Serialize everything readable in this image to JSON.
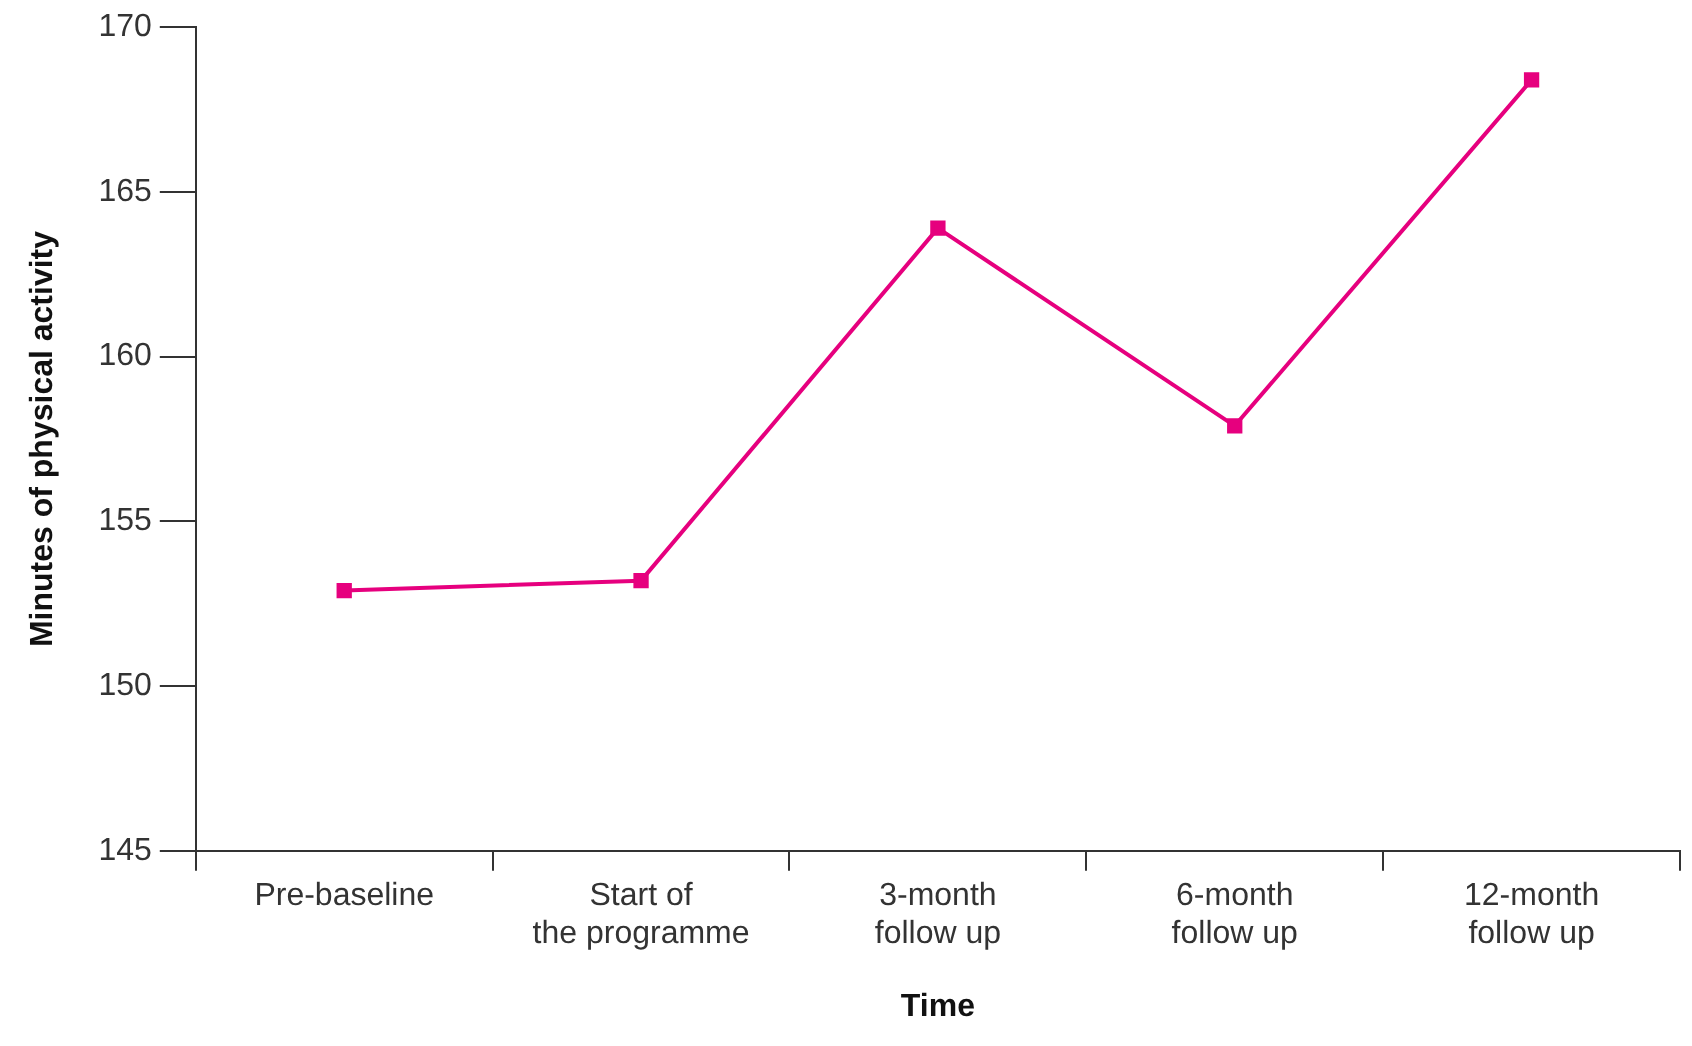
{
  "chart_data": {
    "type": "line",
    "xlabel": "Time",
    "ylabel": "Minutes of physical activity",
    "categories": [
      "Pre-baseline",
      "Start of\nthe programme",
      "3-month\nfollow up",
      "6-month\nfollow up",
      "12-month\nfollow up"
    ],
    "series": [
      {
        "color": "#e6007e",
        "values": [
          152.9,
          153.2,
          163.9,
          157.9,
          168.4
        ]
      }
    ],
    "ylim": [
      145,
      170
    ],
    "yticks": [
      145,
      150,
      155,
      160,
      165,
      170
    ],
    "grid": false,
    "legend": false,
    "marker": "square",
    "line_style": "solid"
  }
}
